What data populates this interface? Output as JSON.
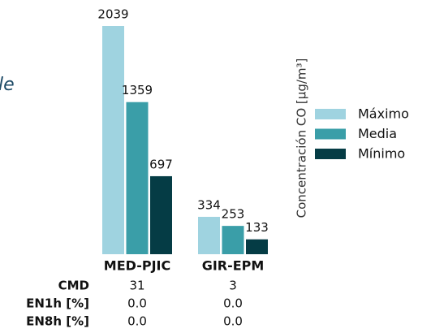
{
  "chart_data": {
    "type": "bar",
    "title": "le",
    "categories": [
      "MED-PJIC",
      "GIR-EPM"
    ],
    "legend_title": "Concentración CO [μg/m³]",
    "series": [
      {
        "name": "Máximo",
        "color": "#9fd3e0",
        "values": [
          2039,
          334
        ]
      },
      {
        "name": "Media",
        "color": "#3a9ea8",
        "values": [
          1359,
          253
        ]
      },
      {
        "name": "Mínimo",
        "color": "#053c45",
        "values": [
          697,
          133
        ]
      }
    ]
  },
  "table": {
    "rows": [
      {
        "label": "CMD",
        "values": [
          "31",
          "3"
        ]
      },
      {
        "label": "EN1h [%]",
        "values": [
          "0.0",
          "0.0"
        ]
      },
      {
        "label": "EN8h [%]",
        "values": [
          "0.0",
          "0.0"
        ]
      }
    ]
  }
}
